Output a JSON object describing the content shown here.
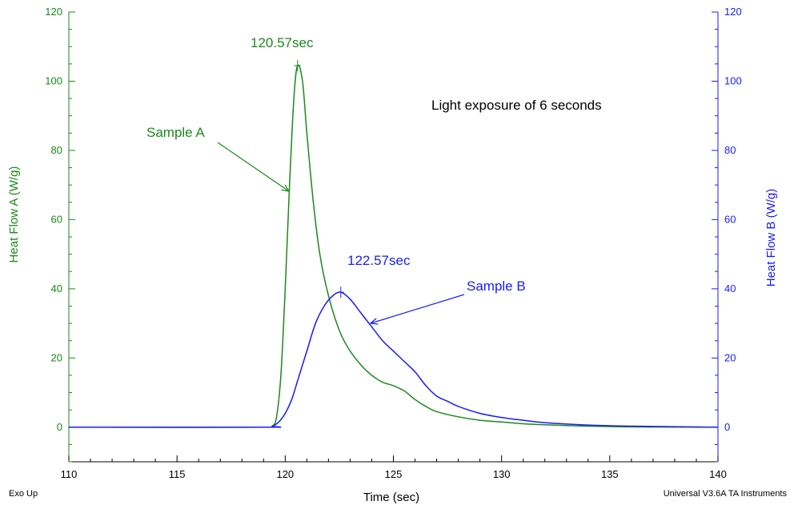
{
  "chart_data": {
    "type": "line",
    "title": "",
    "xlabel": "Time (sec)",
    "ylabel_left": "Heat Flow A (W/g)",
    "ylabel_right": "Heat Flow B (W/g)",
    "xlim": [
      110,
      140
    ],
    "ylim_left": [
      -10,
      120
    ],
    "ylim_right": [
      -10,
      120
    ],
    "x_ticks": [
      110,
      115,
      120,
      125,
      130,
      135,
      140
    ],
    "y_ticks_left": [
      0,
      20,
      40,
      60,
      80,
      100,
      120
    ],
    "y_ticks_right": [
      0,
      20,
      40,
      60,
      80,
      100,
      120
    ],
    "grid": false,
    "colors": {
      "series_a": "#1a8a1a",
      "series_b": "#1a1aff",
      "axis": "#000000"
    },
    "series": [
      {
        "name": "Sample A",
        "axis": "left",
        "color": "#1a8a1a",
        "x": [
          110,
          119.0,
          119.4,
          119.6,
          119.8,
          120.0,
          120.2,
          120.4,
          120.57,
          120.8,
          121.0,
          121.3,
          121.6,
          122.0,
          122.5,
          123.0,
          123.5,
          124.0,
          124.5,
          125.0,
          125.5,
          126.0,
          126.5,
          127.0,
          128.0,
          129.0,
          130.0,
          131.0,
          132.0,
          134.0,
          136.0,
          140.0
        ],
        "y": [
          0,
          0,
          0.3,
          3,
          15,
          40,
          70,
          95,
          104.5,
          100,
          85,
          65,
          50,
          38,
          28,
          22,
          18,
          15,
          13,
          12,
          10.5,
          8,
          6,
          4.5,
          3,
          2,
          1.5,
          1.0,
          0.7,
          0.3,
          0.1,
          0
        ]
      },
      {
        "name": "Sample B",
        "axis": "right",
        "color": "#1a1aff",
        "x": [
          110,
          119.0,
          119.4,
          119.7,
          120.0,
          120.3,
          120.6,
          121.0,
          121.4,
          121.8,
          122.2,
          122.57,
          123.0,
          123.5,
          124.0,
          124.5,
          125.0,
          125.5,
          126.0,
          126.5,
          127.0,
          127.5,
          128.0,
          129.0,
          130.0,
          131.0,
          132.0,
          134.0,
          136.0,
          140.0
        ],
        "y": [
          0,
          0,
          0.3,
          1.5,
          4,
          8,
          14,
          22,
          30,
          35,
          38,
          39,
          37,
          33,
          29,
          25,
          22,
          19,
          16,
          12,
          9,
          7.5,
          6,
          4,
          2.8,
          2,
          1.3,
          0.6,
          0.3,
          0
        ]
      }
    ],
    "peaks": [
      {
        "series": "Sample A",
        "x": 120.57,
        "y": 104.5,
        "label": "120.57sec"
      },
      {
        "series": "Sample B",
        "x": 122.57,
        "y": 39,
        "label": "122.57sec"
      }
    ],
    "annotations": [
      {
        "text": "Light exposure of 6 seconds"
      },
      {
        "text": "Sample A",
        "points_to": "Sample A"
      },
      {
        "text": "Sample B",
        "points_to": "Sample B"
      }
    ],
    "footer_left": "Exo Up",
    "footer_right": "Universal V3.6A TA Instruments"
  }
}
